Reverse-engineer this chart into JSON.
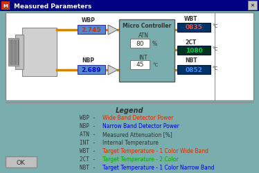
{
  "title": "Measured Parameters",
  "bg_color": "#7aadad",
  "dialog_bg": "#c0d8d8",
  "white_box_bg": "#e8e8e8",
  "sensor_box_bg": "#5a9090",
  "wbp_value": "2.745",
  "nbp_value": "2.689",
  "atn_value": "80",
  "int_value": "45",
  "wbt_value": "0835",
  "twoct_value": "1080",
  "nbt_value": "0852",
  "wbp_color": "#cc3300",
  "nbp_color": "#0000cc",
  "wbt_color": "#cc0000",
  "twoct_color": "#00aa00",
  "nbt_color": "#0000cc",
  "legend_title": "Legend",
  "legend_items": [
    {
      "label": "WBP -",
      "desc": "Wide Band Detector Power",
      "label_color": "#333333",
      "desc_color": "#cc3300"
    },
    {
      "label": "NBP -",
      "desc": "Narrow Band Detector Power",
      "label_color": "#333333",
      "desc_color": "#0000cc"
    },
    {
      "label": "ATN -",
      "desc": "Measured Attenuation [%]",
      "label_color": "#333333",
      "desc_color": "#333333"
    },
    {
      "label": "INT -",
      "desc": "Internal Temperature",
      "label_color": "#333333",
      "desc_color": "#333333"
    },
    {
      "label": "WBT -",
      "desc": "Target Temperature - 1 Color Wide Band",
      "label_color": "#333333",
      "desc_color": "#cc3300"
    },
    {
      "label": "2CT -",
      "desc": "Target Temperature - 2 Color",
      "label_color": "#333333",
      "desc_color": "#00aa00"
    },
    {
      "label": "NBT -",
      "desc": "Target Temperature - 1 Color Narrow Band",
      "label_color": "#333333",
      "desc_color": "#0000cc"
    }
  ]
}
